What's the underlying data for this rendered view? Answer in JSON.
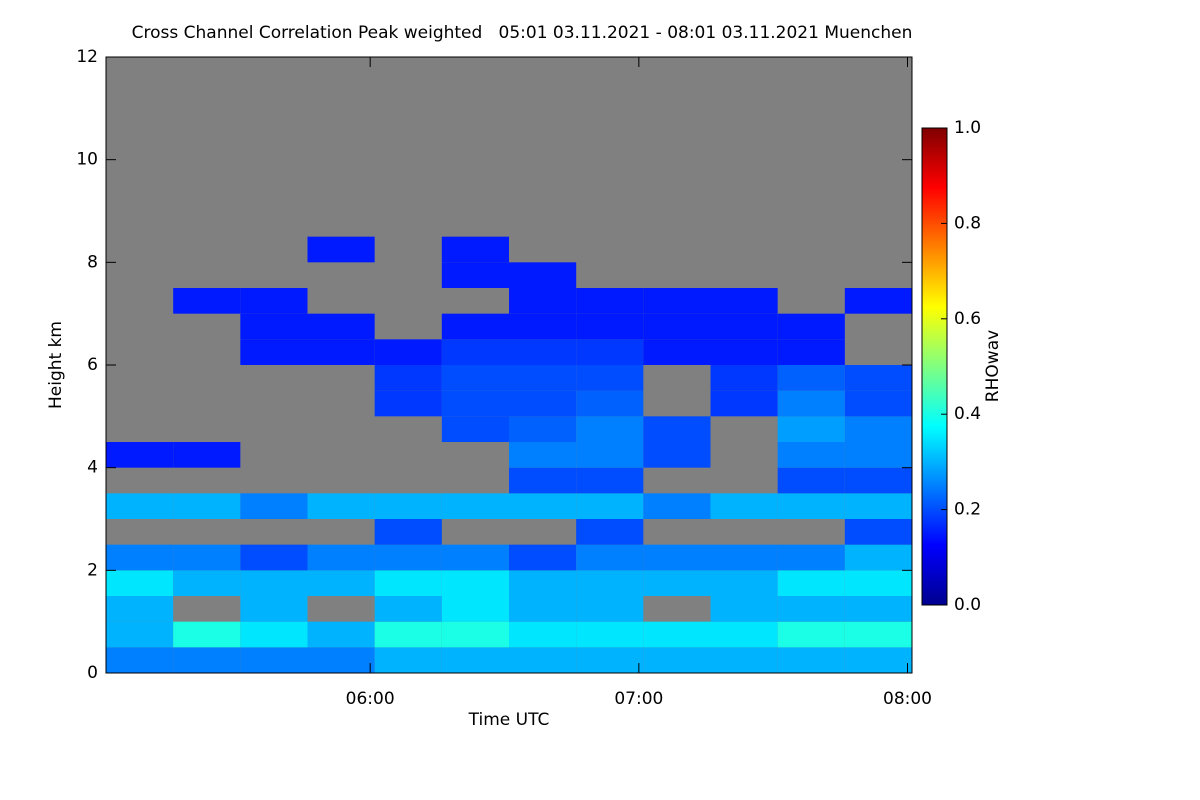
{
  "chart_data": {
    "type": "heatmap",
    "title": "Cross Channel Correlation Peak weighted   05:01 03.11.2021 - 08:01 03.11.2021 Muenchen",
    "xlabel": "Time UTC",
    "ylabel": "Height km",
    "colorbar_label": "RHOwav",
    "xlim": [
      5.0167,
      8.0167
    ],
    "xticks": [
      {
        "value": 6,
        "label": "06:00"
      },
      {
        "value": 7,
        "label": "07:00"
      },
      {
        "value": 8,
        "label": "08:00"
      }
    ],
    "ylim": [
      0,
      12
    ],
    "yticks": [
      0,
      2,
      4,
      6,
      8,
      10,
      12
    ],
    "zlim": [
      0,
      1
    ],
    "zticks": [
      {
        "value": 0,
        "label": "0.0"
      },
      {
        "value": 0.2,
        "label": "0.2"
      },
      {
        "value": 0.4,
        "label": "0.4"
      },
      {
        "value": 0.6,
        "label": "0.6"
      },
      {
        "value": 0.8,
        "label": "0.8"
      },
      {
        "value": 1,
        "label": "1.0"
      }
    ],
    "colormap": [
      "#00008f",
      "#0000ff",
      "#0080ff",
      "#00ffff",
      "#80ff80",
      "#ffff00",
      "#ff8000",
      "#ff0000",
      "#800000"
    ],
    "missing_color": "#808080",
    "xbins": [
      5.0167,
      5.2667,
      5.5167,
      5.7667,
      6.0167,
      6.2667,
      6.5167,
      6.7667,
      7.0167,
      7.2667,
      7.5167,
      7.7667,
      8.0167
    ],
    "ybins": [
      0,
      0.5,
      1,
      1.5,
      2,
      2.5,
      3,
      3.5,
      4,
      4.5,
      5,
      5.5,
      6,
      6.5,
      7,
      7.5,
      8,
      8.5,
      9,
      9.5,
      10,
      10.5,
      11,
      11.5,
      12
    ],
    "z": [
      [
        0.25,
        0.25,
        0.25,
        0.25,
        0.3,
        0.3,
        0.3,
        0.3,
        0.3,
        0.3,
        0.3,
        0.3
      ],
      [
        0.3,
        0.4,
        0.35,
        0.3,
        0.4,
        0.4,
        0.35,
        0.35,
        0.35,
        0.35,
        0.4,
        0.4
      ],
      [
        0.3,
        null,
        0.3,
        null,
        0.3,
        0.35,
        0.3,
        0.3,
        null,
        0.3,
        0.3,
        0.3
      ],
      [
        0.35,
        0.3,
        0.3,
        0.3,
        0.35,
        0.35,
        0.3,
        0.3,
        0.3,
        0.3,
        0.35,
        0.35
      ],
      [
        0.25,
        0.25,
        0.2,
        0.25,
        0.25,
        0.25,
        0.2,
        0.25,
        0.25,
        0.25,
        0.25,
        0.3
      ],
      [
        null,
        null,
        null,
        null,
        0.2,
        null,
        null,
        0.2,
        null,
        null,
        null,
        0.2
      ],
      [
        0.3,
        0.3,
        0.25,
        0.3,
        0.3,
        0.3,
        0.3,
        0.3,
        0.25,
        0.3,
        0.3,
        0.3
      ],
      [
        null,
        null,
        null,
        null,
        null,
        null,
        0.2,
        0.2,
        null,
        null,
        0.2,
        0.2
      ],
      [
        0.15,
        0.15,
        null,
        null,
        null,
        null,
        0.25,
        0.25,
        0.2,
        null,
        0.25,
        0.25
      ],
      [
        null,
        null,
        null,
        null,
        null,
        0.2,
        0.22,
        0.25,
        0.2,
        null,
        0.28,
        0.25
      ],
      [
        null,
        null,
        null,
        null,
        0.18,
        0.2,
        0.2,
        0.22,
        null,
        0.18,
        0.25,
        0.2
      ],
      [
        null,
        null,
        null,
        null,
        0.18,
        0.2,
        0.2,
        0.2,
        null,
        0.18,
        0.22,
        0.2
      ],
      [
        null,
        null,
        0.15,
        0.15,
        0.15,
        0.18,
        0.18,
        0.18,
        0.15,
        0.15,
        0.15,
        null
      ],
      [
        null,
        null,
        0.15,
        0.15,
        null,
        0.15,
        0.15,
        0.15,
        0.15,
        0.15,
        0.15,
        null
      ],
      [
        null,
        0.15,
        0.15,
        null,
        null,
        null,
        0.15,
        0.15,
        0.15,
        0.15,
        null,
        0.15
      ],
      [
        null,
        null,
        null,
        null,
        null,
        0.15,
        0.15,
        null,
        null,
        null,
        null,
        null
      ],
      [
        null,
        null,
        null,
        0.15,
        null,
        0.15,
        null,
        null,
        null,
        null,
        null,
        null
      ],
      [
        null,
        null,
        null,
        null,
        null,
        null,
        null,
        null,
        null,
        null,
        null,
        null
      ],
      [
        null,
        null,
        null,
        null,
        null,
        null,
        null,
        null,
        null,
        null,
        null,
        null
      ],
      [
        null,
        null,
        null,
        null,
        null,
        null,
        null,
        null,
        null,
        null,
        null,
        null
      ],
      [
        null,
        null,
        null,
        null,
        null,
        null,
        null,
        null,
        null,
        null,
        null,
        null
      ],
      [
        null,
        null,
        null,
        null,
        null,
        null,
        null,
        null,
        null,
        null,
        null,
        null
      ],
      [
        null,
        null,
        null,
        null,
        null,
        null,
        null,
        null,
        null,
        null,
        null,
        null
      ],
      [
        null,
        null,
        null,
        null,
        null,
        null,
        null,
        null,
        null,
        null,
        null,
        null
      ]
    ]
  }
}
